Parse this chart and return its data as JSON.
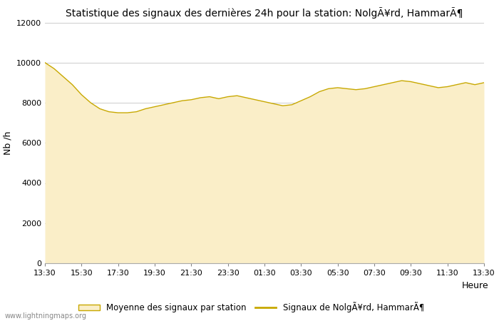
{
  "title": "Statistique des signaux des dernières 24h pour la station: NolgÃ¥rd, HammarÃ¶",
  "xlabel": "Heure",
  "ylabel": "Nb /h",
  "ylim": [
    0,
    12000
  ],
  "yticks": [
    0,
    2000,
    4000,
    6000,
    8000,
    10000,
    12000
  ],
  "xtick_labels": [
    "13:30",
    "15:30",
    "17:30",
    "19:30",
    "21:30",
    "23:30",
    "01:30",
    "03:30",
    "05:30",
    "07:30",
    "09:30",
    "11:30",
    "13:30"
  ],
  "fill_color": "#FAEEC8",
  "line_color": "#C8A800",
  "background_color": "#ffffff",
  "grid_color": "#cccccc",
  "watermark": "www.lightningmaps.org",
  "legend_area_label": "Moyenne des signaux par station",
  "legend_line_label": "Signaux de NolgÃ¥rd, HammarÃ¶",
  "y_area": [
    10000,
    9700,
    9300,
    8900,
    8400,
    8000,
    7700,
    7550,
    7500,
    7500,
    7550,
    7700,
    7800,
    7900,
    8000,
    8100,
    8150,
    8250,
    8300,
    8200,
    8300,
    8350,
    8250,
    8150,
    8050,
    7950,
    7850,
    7900,
    8100,
    8300,
    8550,
    8700,
    8750,
    8700,
    8650,
    8700,
    8800,
    8900,
    9000,
    9100,
    9050,
    8950,
    8850,
    8750,
    8800,
    8900,
    9000,
    8900,
    9000
  ],
  "y_line": [
    10000,
    9700,
    9300,
    8900,
    8400,
    8000,
    7700,
    7550,
    7500,
    7500,
    7550,
    7700,
    7800,
    7900,
    8000,
    8100,
    8150,
    8250,
    8300,
    8200,
    8300,
    8350,
    8250,
    8150,
    8050,
    7950,
    7850,
    7900,
    8100,
    8300,
    8550,
    8700,
    8750,
    8700,
    8650,
    8700,
    8800,
    8900,
    9000,
    9100,
    9050,
    8950,
    8850,
    8750,
    8800,
    8900,
    9000,
    8900,
    9000
  ]
}
